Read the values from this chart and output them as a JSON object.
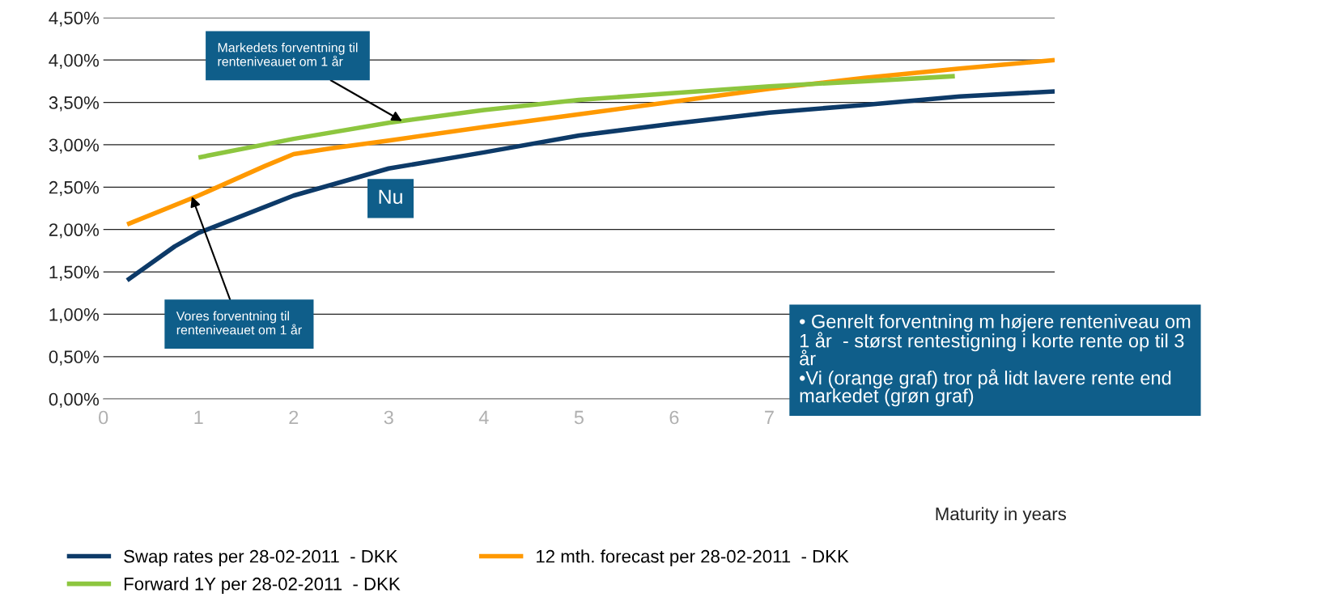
{
  "chart_data": {
    "type": "line",
    "xlabel": "Maturity in years",
    "xlim": [
      0,
      10
    ],
    "xticks": [
      0,
      1,
      2,
      3,
      4,
      5,
      6,
      7
    ],
    "ylim": [
      0,
      4.5
    ],
    "yticks": [
      {
        "value": 0,
        "label": "0,00%"
      },
      {
        "value": 0.5,
        "label": "0,50%"
      },
      {
        "value": 1,
        "label": "1,00%"
      },
      {
        "value": 1.5,
        "label": "1,50%"
      },
      {
        "value": 2,
        "label": "2,00%"
      },
      {
        "value": 2.5,
        "label": "2,50%"
      },
      {
        "value": 3,
        "label": "3,00%"
      },
      {
        "value": 3.5,
        "label": "3,50%"
      },
      {
        "value": 4,
        "label": "4,00%"
      },
      {
        "value": 4.5,
        "label": "4,50%"
      }
    ],
    "grid": "y",
    "legend": "bottom",
    "marker": "none",
    "line_style": "solid",
    "series": [
      {
        "name": "Swap rates per 28-02-2011  - DKK",
        "color": "#0d3a68",
        "x": [
          0.25,
          0.75,
          1,
          2,
          3,
          4,
          5,
          6,
          7,
          8,
          9,
          10
        ],
        "values": [
          1.4,
          1.8,
          1.96,
          2.4,
          2.72,
          2.91,
          3.11,
          3.25,
          3.38,
          3.47,
          3.57,
          3.63
        ]
      },
      {
        "name": "12 mth. forecast per 28-02-2011  - DKK",
        "color": "#ff9900",
        "x": [
          0.25,
          1,
          1.7,
          2,
          2.4,
          3,
          4,
          5,
          6,
          7,
          8,
          9,
          10
        ],
        "values": [
          2.06,
          2.4,
          2.75,
          2.89,
          2.96,
          3.05,
          3.21,
          3.36,
          3.51,
          3.66,
          3.79,
          3.9,
          4.0
        ]
      },
      {
        "name": "Forward 1Y per 28-02-2011  - DKK",
        "color": "#8dc63f",
        "x": [
          1,
          2,
          3,
          4,
          5,
          6,
          7,
          8,
          8.95
        ],
        "values": [
          2.85,
          3.07,
          3.26,
          3.41,
          3.53,
          3.61,
          3.69,
          3.75,
          3.81
        ]
      }
    ],
    "annotations": [
      {
        "text": "Markedets forventning til\nrenteniveauet om 1 år",
        "x": 3.14,
        "y": 3.28
      },
      {
        "text": "Vores forventning til\nrenteniveauet om 1 år",
        "x": 0.93,
        "y": 2.39
      },
      "Nu",
      "• Genrelt forventning m højere renteniveau om\n1 år  - størst rentestigning i korte rente op til 3\når\n•Vi (orange graf) tror på lidt lavere rente end\nmarkedet (grøn graf)"
    ]
  }
}
